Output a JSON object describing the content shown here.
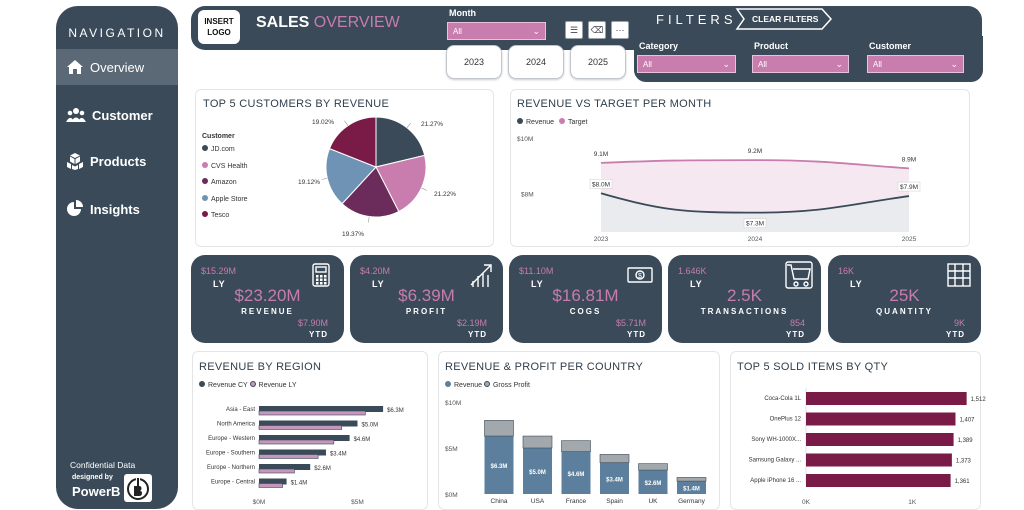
{
  "nav": {
    "title": "NAVIGATION",
    "items": [
      {
        "label": "Overview",
        "icon": "home-icon"
      },
      {
        "label": "Customer",
        "icon": "users-icon"
      },
      {
        "label": "Products",
        "icon": "cubes-icon"
      },
      {
        "label": "Insights",
        "icon": "pie-chart-icon"
      }
    ],
    "confidential": "Confidential Data",
    "designed_by": "designed by",
    "brand": "PowerB"
  },
  "header": {
    "logo": "INSERT LOGO",
    "title_main": "SALES",
    "title_accent": "OVERVIEW",
    "month_label": "Month",
    "month_value": "All",
    "years": [
      "2023",
      "2024",
      "2025"
    ],
    "filters_title": "FILTERS",
    "clear_filters": "CLEAR FILTERS",
    "category_label": "Category",
    "category_value": "All",
    "product_label": "Product",
    "product_value": "All",
    "customer_label": "Customer",
    "customer_value": "All"
  },
  "colors": {
    "navy": "#3a4a59",
    "accent": "#c77dac",
    "maroon": "#7a1b47",
    "steel": "#5b7f9c"
  },
  "chart_data": [
    {
      "type": "pie",
      "title": "TOP 5 CUSTOMERS BY REVENUE",
      "legend_title": "Customer",
      "labels": [
        "JD.com",
        "CVS Health",
        "Amazon",
        "Apple Store",
        "Tesco"
      ],
      "values": [
        21.27,
        21.22,
        19.37,
        19.12,
        19.02
      ],
      "value_labels": [
        "21.27%",
        "21.22%",
        "19.37%",
        "19.12%",
        "19.02%"
      ],
      "colors": [
        "#3a4a59",
        "#c97dae",
        "#6b2b5b",
        "#6e93b4",
        "#7a1b47"
      ]
    },
    {
      "type": "line",
      "title": "REVENUE VS TARGET PER MONTH",
      "x": [
        "2023",
        "2024",
        "2025"
      ],
      "series": [
        {
          "name": "Revenue",
          "values": [
            8.0,
            7.3,
            7.9
          ],
          "labels": [
            "$8.0M",
            "$7.3M",
            "$7.9M"
          ],
          "color": "#3a4a59"
        },
        {
          "name": "Target",
          "values": [
            9.1,
            9.2,
            8.9
          ],
          "labels": [
            "9.1M",
            "9.2M",
            "8.9M"
          ],
          "color": "#c97dae"
        }
      ],
      "y_ticks": [
        "$8M",
        "$10M"
      ],
      "ylim": [
        6.6,
        10
      ]
    },
    {
      "type": "bar",
      "title": "REVENUE BY REGION",
      "orientation": "horizontal",
      "categories": [
        "Asia - East",
        "North America",
        "Europe - Western",
        "Europe - Southern",
        "Europe - Northern",
        "Europe - Central"
      ],
      "series": [
        {
          "name": "Revenue CY",
          "values": [
            6.3,
            5.0,
            4.6,
            3.4,
            2.6,
            1.4
          ],
          "labels": [
            "$6.3M",
            "$5.0M",
            "$4.6M",
            "$3.4M",
            "$2.6M",
            "$1.4M"
          ],
          "color": "#3a4a59"
        },
        {
          "name": "Revenue LY",
          "values": [
            5.4,
            4.2,
            3.8,
            3.0,
            1.8,
            1.2
          ],
          "color": "#c497bb"
        }
      ],
      "x_ticks": [
        "$0M",
        "$5M"
      ],
      "xlim": [
        0,
        6.6
      ]
    },
    {
      "type": "bar",
      "title": "REVENUE & PROFIT PER COUNTRY",
      "categories": [
        "China",
        "USA",
        "France",
        "Spain",
        "UK",
        "Germany"
      ],
      "series": [
        {
          "name": "Revenue",
          "values": [
            6.3,
            5.0,
            4.6,
            3.4,
            2.6,
            1.4
          ],
          "labels": [
            "$6.3M",
            "$5.0M",
            "$4.6M",
            "$3.4M",
            "$2.6M",
            "$1.4M"
          ],
          "color": "#5b7f9c"
        },
        {
          "name": "Gross Profit",
          "values": [
            1.7,
            1.3,
            1.2,
            0.9,
            0.7,
            0.4
          ],
          "color": "#a3a8ad"
        }
      ],
      "y_ticks": [
        "$0M",
        "$5M",
        "$10M"
      ],
      "ylim": [
        0,
        10
      ]
    },
    {
      "type": "bar",
      "title": "TOP 5 SOLD ITEMS BY QTY",
      "orientation": "horizontal",
      "categories": [
        "Coca-Cola 1L",
        "OnePlus 12",
        "Sony WH-1000X...",
        "Samsung Galaxy ...",
        "Apple iPhone 16 ..."
      ],
      "values": [
        1512,
        1407,
        1389,
        1373,
        1361
      ],
      "value_labels": [
        "1,512",
        "1,407",
        "1,389",
        "1,373",
        "1,361"
      ],
      "x_ticks": [
        "0K",
        "1K"
      ],
      "xlim": [
        0,
        1600
      ],
      "color": "#7a1b47"
    }
  ],
  "kpis": [
    {
      "ly_value": "$15.29M",
      "ly_label": "LY",
      "value": "$23.20M",
      "name": "REVENUE",
      "ytd_value": "$7.90M",
      "ytd_label": "YTD",
      "icon": "calculator-icon"
    },
    {
      "ly_value": "$4.20M",
      "ly_label": "LY",
      "value": "$6.39M",
      "name": "PROFIT",
      "ytd_value": "$2.19M",
      "ytd_label": "YTD",
      "icon": "growth-chart-icon"
    },
    {
      "ly_value": "$11.10M",
      "ly_label": "LY",
      "value": "$16.81M",
      "name": "COGS",
      "ytd_value": "$5.71M",
      "ytd_label": "YTD",
      "icon": "cash-icon"
    },
    {
      "ly_value": "1.646K",
      "ly_label": "LY",
      "value": "2.5K",
      "name": "TRANSACTIONS",
      "ytd_value": "854",
      "ytd_label": "YTD",
      "icon": "cart-icon"
    },
    {
      "ly_value": "16K",
      "ly_label": "LY",
      "value": "25K",
      "name": "QUANTITY",
      "ytd_value": "9K",
      "ytd_label": "YTD",
      "icon": "boxes-icon"
    }
  ]
}
